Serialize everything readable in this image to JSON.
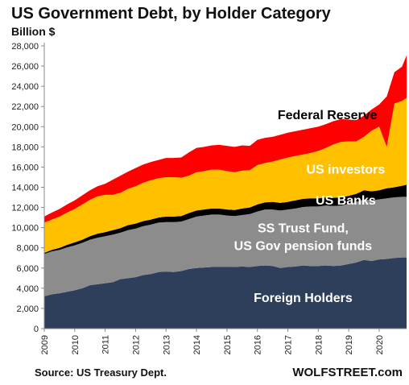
{
  "header": {
    "title": "US Government Debt, by Holder Category",
    "subtitle": "Billion $"
  },
  "footer": {
    "source": "Source: US Treasury Dept.",
    "brand": "WOLFSTREET.com"
  },
  "chart_data": {
    "type": "area",
    "stacked": true,
    "title": "US Government Debt, by Holder Category",
    "ylabel": "Billion $",
    "ylim": [
      0,
      28000
    ],
    "yticks": [
      0,
      2000,
      4000,
      6000,
      8000,
      10000,
      12000,
      14000,
      16000,
      18000,
      20000,
      22000,
      24000,
      26000,
      28000
    ],
    "ytick_labels": [
      "0",
      "2,000",
      "4,000",
      "6,000",
      "8,000",
      "10,000",
      "12,000",
      "14,000",
      "16,000",
      "18,000",
      "20,000",
      "22,000",
      "24,000",
      "26,000",
      "28,000"
    ],
    "xlim": [
      2009.0,
      2020.9
    ],
    "xtick_labels": [
      "2009",
      "2010",
      "2011",
      "2012",
      "2013",
      "2014",
      "2015",
      "2016",
      "2017",
      "2018",
      "2019",
      "2020"
    ],
    "x": [
      2009.0,
      2009.25,
      2009.5,
      2009.75,
      2010.0,
      2010.25,
      2010.5,
      2010.75,
      2011.0,
      2011.25,
      2011.5,
      2011.75,
      2012.0,
      2012.25,
      2012.5,
      2012.75,
      2013.0,
      2013.25,
      2013.5,
      2013.75,
      2014.0,
      2014.25,
      2014.5,
      2014.75,
      2015.0,
      2015.25,
      2015.5,
      2015.75,
      2016.0,
      2016.25,
      2016.5,
      2016.75,
      2017.0,
      2017.25,
      2017.5,
      2017.75,
      2018.0,
      2018.25,
      2018.5,
      2018.75,
      2019.0,
      2019.25,
      2019.5,
      2019.75,
      2020.0,
      2020.25,
      2020.5,
      2020.75,
      2020.9
    ],
    "series": [
      {
        "name": "Foreign Holders",
        "color": "#2e3f5c",
        "label_color": "#ffffff",
        "values": [
          3200,
          3400,
          3500,
          3650,
          3800,
          4000,
          4300,
          4400,
          4500,
          4600,
          4900,
          5000,
          5100,
          5300,
          5400,
          5600,
          5650,
          5600,
          5700,
          5900,
          6000,
          6050,
          6100,
          6100,
          6100,
          6100,
          6150,
          6100,
          6200,
          6250,
          6200,
          6000,
          6100,
          6150,
          6250,
          6200,
          6200,
          6250,
          6200,
          6250,
          6400,
          6550,
          6800,
          6700,
          6850,
          6900,
          7000,
          7050,
          7050
        ]
      },
      {
        "name": "SS Trust Fund, US Gov pension funds",
        "color": "#8c8c8c",
        "label_color": "#ffffff",
        "values": [
          4200,
          4250,
          4300,
          4400,
          4450,
          4500,
          4500,
          4600,
          4650,
          4700,
          4600,
          4750,
          4800,
          4850,
          4900,
          4900,
          4900,
          4950,
          4900,
          4950,
          5100,
          5150,
          5200,
          5200,
          5100,
          5050,
          5100,
          5250,
          5400,
          5550,
          5600,
          5700,
          5700,
          5750,
          5800,
          5900,
          5900,
          5950,
          5950,
          5950,
          5950,
          6000,
          6000,
          6000,
          5950,
          6000,
          6000,
          6000,
          6000
        ]
      },
      {
        "name": "US Banks",
        "color": "#000000",
        "label_color": "#ffffff",
        "values": [
          100,
          150,
          200,
          250,
          300,
          300,
          350,
          400,
          400,
          450,
          450,
          500,
          500,
          500,
          500,
          500,
          550,
          550,
          550,
          600,
          600,
          600,
          600,
          600,
          600,
          600,
          650,
          650,
          700,
          700,
          750,
          750,
          750,
          800,
          800,
          800,
          800,
          800,
          800,
          800,
          800,
          800,
          900,
          900,
          900,
          1000,
          1000,
          1100,
          1200
        ]
      },
      {
        "name": "US investors",
        "color": "#ffc000",
        "label_color": "#ffffff",
        "values": [
          3000,
          3000,
          3100,
          3200,
          3300,
          3500,
          3600,
          3700,
          3700,
          3500,
          3500,
          3600,
          3700,
          3800,
          3900,
          3900,
          3900,
          3900,
          3800,
          3700,
          3800,
          3800,
          3850,
          3850,
          3800,
          3750,
          3750,
          3700,
          3900,
          3900,
          4000,
          4300,
          4400,
          4400,
          4400,
          4500,
          4700,
          4900,
          5300,
          5500,
          5400,
          5200,
          5300,
          6000,
          6300,
          4100,
          8300,
          8400,
          8600
        ]
      },
      {
        "name": "Federal Reserve",
        "color": "#ff0000",
        "label_color": "#000000",
        "values": [
          600,
          700,
          750,
          800,
          850,
          900,
          950,
          1000,
          1100,
          1500,
          1700,
          1700,
          1800,
          1800,
          1800,
          1800,
          1900,
          1900,
          2000,
          2300,
          2400,
          2400,
          2400,
          2450,
          2500,
          2500,
          2500,
          2400,
          2500,
          2500,
          2450,
          2450,
          2450,
          2450,
          2450,
          2450,
          2400,
          2350,
          2300,
          2250,
          2150,
          2100,
          2100,
          2100,
          2200,
          5000,
          3100,
          3400,
          4200
        ]
      }
    ]
  }
}
